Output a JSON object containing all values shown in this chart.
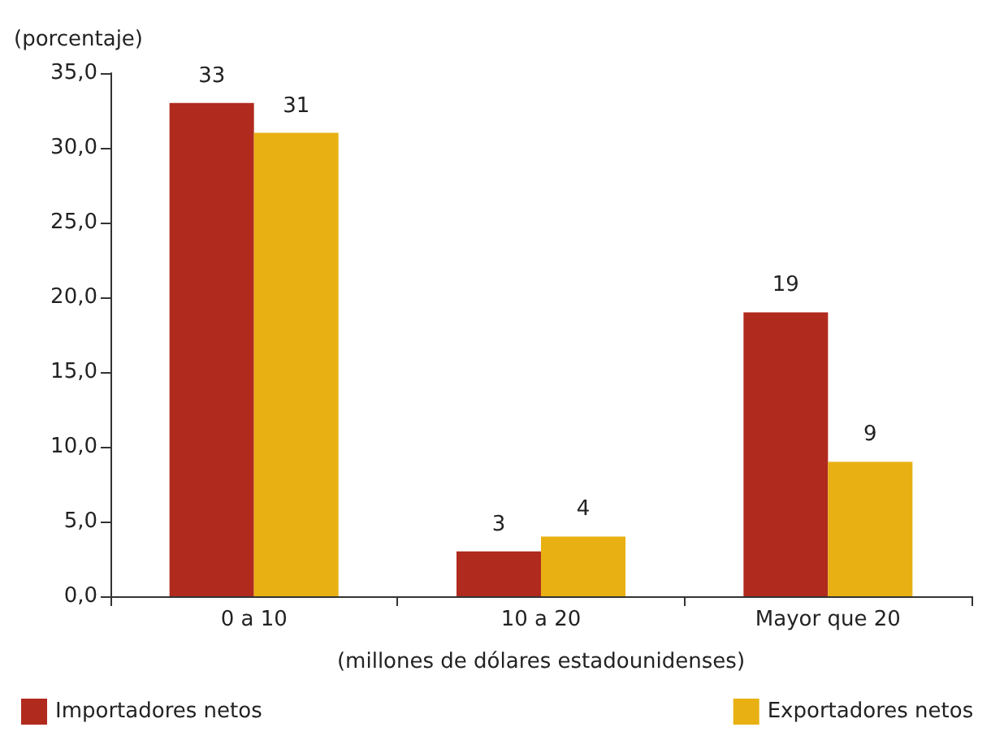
{
  "chart_data": {
    "type": "bar",
    "ylabel": "(porcentaje)",
    "xlabel": "(millones de dólares estadounidenses)",
    "categories": [
      "0 a 10",
      "10 a 20",
      "Mayor que 20"
    ],
    "series": [
      {
        "name": "Importadores netos",
        "color": "#b02a1e",
        "values": [
          33,
          3,
          19
        ]
      },
      {
        "name": "Exportadores netos",
        "color": "#e8b012",
        "values": [
          31,
          4,
          9
        ]
      }
    ],
    "ylim": [
      0,
      35
    ],
    "yticks": [
      {
        "value": 0,
        "label": "0,0"
      },
      {
        "value": 5,
        "label": "5,0"
      },
      {
        "value": 10,
        "label": "10,0"
      },
      {
        "value": 15,
        "label": "15,0"
      },
      {
        "value": 20,
        "label": "20,0"
      },
      {
        "value": 25,
        "label": "25,0"
      },
      {
        "value": 30,
        "label": "30,0"
      },
      {
        "value": 35,
        "label": "35,0"
      }
    ],
    "data_labels": true,
    "grid": false,
    "legend": "bottom"
  }
}
